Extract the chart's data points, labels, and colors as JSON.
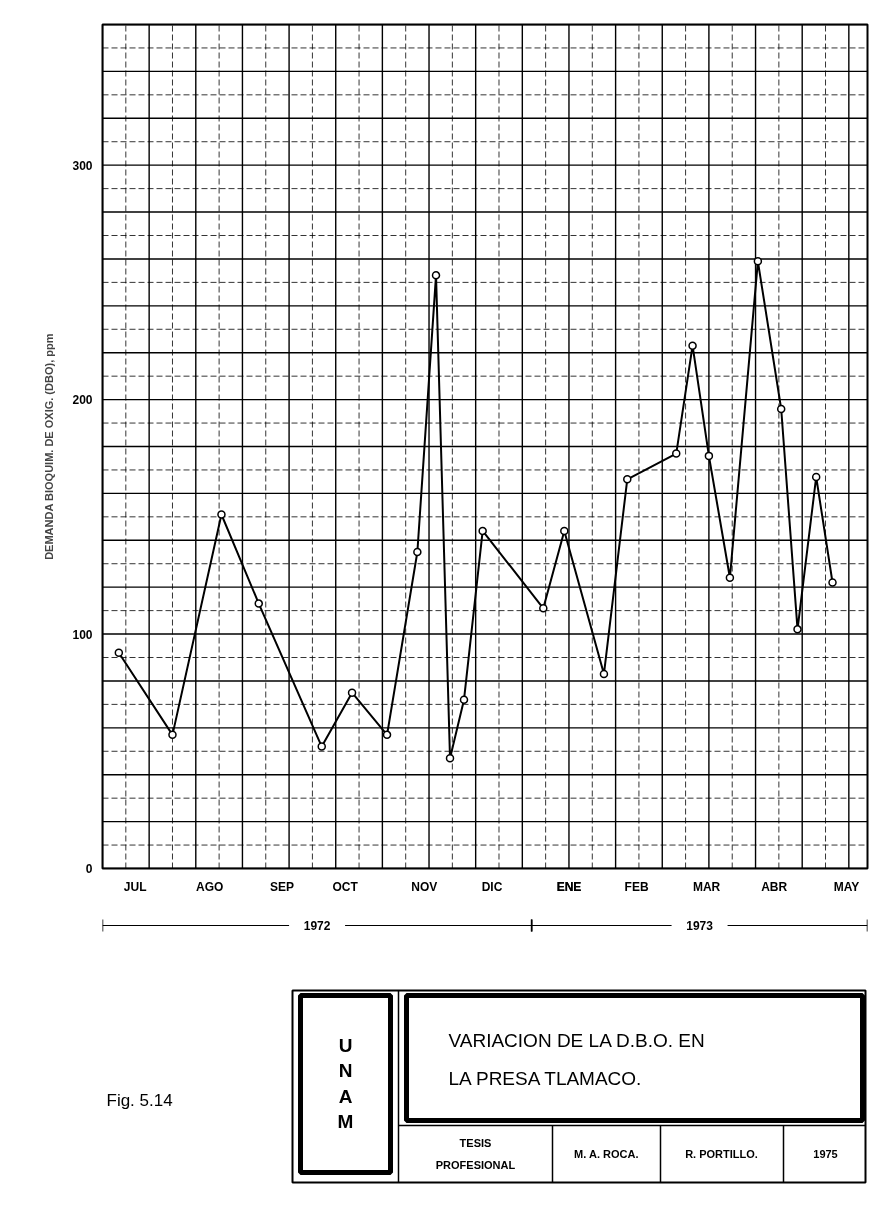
{
  "chart_data": {
    "type": "line",
    "title": "VARIACION DE LA D.B.O. EN LA PRESA TLAMACO.",
    "ylabel": "DEMANDA BIOQUIM. DE OXIG. (DBO), ppm",
    "x": [
      "1972-07-08",
      "1972-07-31",
      "1972-08-21",
      "1972-09-06",
      "1972-10-03",
      "1972-10-16",
      "1972-10-31",
      "1972-11-13",
      "1972-11-21",
      "1972-11-27",
      "1972-12-03",
      "1972-12-11",
      "1973-01-06",
      "1973-01-15",
      "1973-02-01",
      "1973-02-11",
      "1973-03-04",
      "1973-03-11",
      "1973-03-18",
      "1973-03-27",
      "1973-04-08",
      "1973-04-18",
      "1973-04-25",
      "1973-05-03",
      "1973-05-10"
    ],
    "series": [
      {
        "color": "#000000",
        "values": [
          92,
          57,
          151,
          113,
          52,
          75,
          57,
          135,
          253,
          47,
          72,
          144,
          111,
          144,
          83,
          166,
          177,
          223,
          176,
          124,
          259,
          196,
          102,
          167,
          122
        ]
      }
    ],
    "marker": "circle",
    "line_style": "solid",
    "grid": true,
    "xlim": [
      "1972-07-01",
      "1973-05-25"
    ],
    "xticks": [
      {
        "value": "1972-07-01",
        "label": null
      },
      {
        "value": "1972-07-11",
        "label": null
      },
      {
        "value": "1972-07-21",
        "label": null
      },
      {
        "value": "1972-07-31",
        "label": null
      },
      {
        "value": "1972-08-10",
        "label": null
      },
      {
        "value": "1972-08-20",
        "label": null
      },
      {
        "value": "1972-08-30",
        "label": null
      },
      {
        "value": "1972-09-09",
        "label": null
      },
      {
        "value": "1972-09-19",
        "label": null
      },
      {
        "value": "1972-09-29",
        "label": null
      },
      {
        "value": "1972-10-09",
        "label": null
      },
      {
        "value": "1972-10-19",
        "label": null
      },
      {
        "value": "1972-10-29",
        "label": null
      },
      {
        "value": "1972-11-08",
        "label": null
      },
      {
        "value": "1972-11-18",
        "label": null
      },
      {
        "value": "1972-11-28",
        "label": null
      },
      {
        "value": "1972-12-08",
        "label": null
      },
      {
        "value": "1972-12-18",
        "label": null
      },
      {
        "value": "1972-12-28",
        "label": null
      },
      {
        "value": "1973-01-07",
        "label": null
      },
      {
        "value": "1973-01-17",
        "label": null
      },
      {
        "value": "1973-01-27",
        "label": null
      },
      {
        "value": "1973-02-06",
        "label": null
      },
      {
        "value": "1973-02-16",
        "label": null
      },
      {
        "value": "1973-02-26",
        "label": null
      },
      {
        "value": "1973-03-08",
        "label": null
      },
      {
        "value": "1973-03-18",
        "label": null
      },
      {
        "value": "1973-03-28",
        "label": null
      },
      {
        "value": "1973-04-07",
        "label": null
      },
      {
        "value": "1973-04-17",
        "label": null
      },
      {
        "value": "1973-04-27",
        "label": null
      },
      {
        "value": "1973-05-07",
        "label": null
      },
      {
        "value": "1973-05-17",
        "label": null
      },
      {
        "value": "1972-07-15",
        "label": "JUL"
      },
      {
        "value": "1972-08-16",
        "label": "AGO"
      },
      {
        "value": "1972-09-16",
        "label": "SEP"
      },
      {
        "value": "1972-10-13",
        "label": "OCT"
      },
      {
        "value": "1972-11-16",
        "label": "NOV"
      },
      {
        "value": "1972-12-15",
        "label": "DIC"
      },
      {
        "value": "1973-01-17",
        "label": "ENE"
      },
      {
        "value": "1973-02-15",
        "label": "FEB"
      },
      {
        "value": "1973-03-17",
        "label": "MAR"
      },
      {
        "value": "1973-04-15",
        "label": "ABR"
      },
      {
        "value": "1973-05-16",
        "label": "MAY"
      }
    ],
    "ylim": [
      0,
      360
    ],
    "yticks": [
      0,
      {
        "value": 10,
        "label": null
      },
      {
        "value": 20,
        "label": null
      },
      {
        "value": 30,
        "label": null
      },
      {
        "value": 40,
        "label": null
      },
      {
        "value": 50,
        "label": null
      },
      {
        "value": 60,
        "label": null
      },
      {
        "value": 70,
        "label": null
      },
      {
        "value": 80,
        "label": null
      },
      {
        "value": 90,
        "label": null
      },
      100,
      {
        "value": 110,
        "label": null
      },
      {
        "value": 120,
        "label": null
      },
      {
        "value": 130,
        "label": null
      },
      {
        "value": 140,
        "label": null
      },
      {
        "value": 150,
        "label": null
      },
      {
        "value": 160,
        "label": null
      },
      {
        "value": 170,
        "label": null
      },
      {
        "value": 180,
        "label": null
      },
      {
        "value": 190,
        "label": null
      },
      200,
      {
        "value": 210,
        "label": null
      },
      {
        "value": 220,
        "label": null
      },
      {
        "value": 230,
        "label": null
      },
      {
        "value": 240,
        "label": null
      },
      {
        "value": 250,
        "label": null
      },
      {
        "value": 260,
        "label": null
      },
      {
        "value": 270,
        "label": null
      },
      {
        "value": 280,
        "label": null
      },
      {
        "value": 290,
        "label": null
      },
      300,
      {
        "value": 310,
        "label": null
      },
      {
        "value": 320,
        "label": null
      },
      {
        "value": 330,
        "label": null
      },
      {
        "value": 340,
        "label": null
      },
      {
        "value": 350,
        "label": null
      },
      {
        "value": 360,
        "label": null
      }
    ],
    "annotations": [
      "1972",
      "1973",
      "Fig. 5.14",
      "UNAM",
      "TESIS PROFESIONAL",
      "M. A. ROCA.",
      "R. PORTILLO.",
      "1975"
    ]
  }
}
